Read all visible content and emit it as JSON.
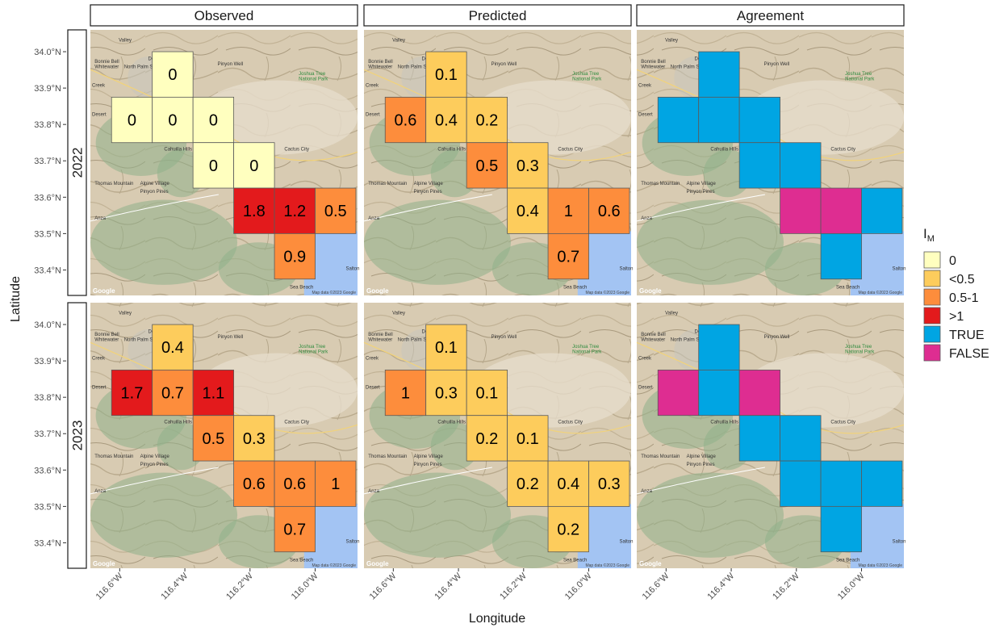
{
  "chart_data": {
    "type": "heatmap",
    "xlabel": "Longitude",
    "ylabel": "Latitude",
    "x_ticks": [
      "116.6°W",
      "116.4°W",
      "116.2°W",
      "116.0°W"
    ],
    "x_tick_values": [
      -116.6,
      -116.4,
      -116.2,
      -116.0
    ],
    "y_ticks": [
      "34.0°N",
      "33.9°N",
      "33.8°N",
      "33.7°N",
      "33.6°N",
      "33.5°N",
      "33.4°N"
    ],
    "y_tick_values": [
      34.0,
      33.9,
      33.8,
      33.7,
      33.6,
      33.5,
      33.4
    ],
    "xlim": [
      -116.69,
      -115.87
    ],
    "ylim": [
      33.33,
      34.06
    ],
    "cell_size_deg": [
      0.125,
      0.125
    ],
    "cell_centers": [
      {
        "id": "A",
        "lon": -116.4375,
        "lat": 33.9375
      },
      {
        "id": "B",
        "lon": -116.5625,
        "lat": 33.8125
      },
      {
        "id": "C",
        "lon": -116.4375,
        "lat": 33.8125
      },
      {
        "id": "D",
        "lon": -116.3125,
        "lat": 33.8125
      },
      {
        "id": "E",
        "lon": -116.3125,
        "lat": 33.6875
      },
      {
        "id": "F",
        "lon": -116.1875,
        "lat": 33.6875
      },
      {
        "id": "G",
        "lon": -116.1875,
        "lat": 33.5625
      },
      {
        "id": "H",
        "lon": -116.0625,
        "lat": 33.5625
      },
      {
        "id": "I",
        "lon": -115.9375,
        "lat": 33.5625
      },
      {
        "id": "J",
        "lon": -116.0625,
        "lat": 33.4375
      }
    ],
    "columns": [
      "Observed",
      "Predicted",
      "Agreement"
    ],
    "rows": [
      "2022",
      "2023"
    ],
    "legend": {
      "title": "I",
      "title_sub": "M",
      "position": "right",
      "entries": [
        {
          "label": "0",
          "color": "#ffffbf"
        },
        {
          "label": "<0.5",
          "color": "#fdcc5c"
        },
        {
          "label": "0.5-1",
          "color": "#fd8d3c"
        },
        {
          "label": ">1",
          "color": "#e31a1c"
        },
        {
          "label": "TRUE",
          "color": "#00a5e3"
        },
        {
          "label": "FALSE",
          "color": "#de2d91"
        }
      ]
    },
    "panels": [
      {
        "row": "2022",
        "column": "Observed",
        "values": [
          "0",
          "0",
          "0",
          "0",
          "0",
          "0",
          "1.8",
          "1.2",
          "0.5",
          "0.9"
        ]
      },
      {
        "row": "2022",
        "column": "Predicted",
        "values": [
          "0.1",
          "0.6",
          "0.4",
          "0.2",
          "0.5",
          "0.3",
          "0.4",
          "1",
          "0.6",
          "0.7"
        ]
      },
      {
        "row": "2022",
        "column": "Agreement",
        "values": [
          "TRUE",
          "TRUE",
          "TRUE",
          "TRUE",
          "TRUE",
          "TRUE",
          "FALSE",
          "FALSE",
          "TRUE",
          "TRUE"
        ]
      },
      {
        "row": "2023",
        "column": "Observed",
        "values": [
          "0.4",
          "1.7",
          "0.7",
          "1.1",
          "0.5",
          "0.3",
          "0.6",
          "0.6",
          "1",
          "0.7"
        ]
      },
      {
        "row": "2023",
        "column": "Predicted",
        "values": [
          "0.1",
          "1",
          "0.3",
          "0.1",
          "0.2",
          "0.1",
          "0.2",
          "0.4",
          "0.3",
          "0.2"
        ]
      },
      {
        "row": "2023",
        "column": "Agreement",
        "values": [
          "TRUE",
          "FALSE",
          "TRUE",
          "FALSE",
          "TRUE",
          "TRUE",
          "TRUE",
          "TRUE",
          "TRUE",
          "TRUE"
        ]
      }
    ],
    "basemap_labels": {
      "places": [
        "Valley",
        "Desert Springs",
        "Bonnie Bell",
        "Whitewater",
        "North Palm Springs",
        "Pinyon Well",
        "Creek",
        "Desert",
        "Palm",
        "Mirage",
        "Palm",
        "Cahuilla Hills",
        "Cactus City",
        "Thomas Mountain",
        "Alpine Village",
        "Pinyon Pines",
        "Anza",
        "Sea Beach",
        "Salton"
      ],
      "park": [
        "Joshua Tree",
        "National Park"
      ],
      "credit": "Map data ©2023 Google",
      "logo": "Google"
    }
  }
}
